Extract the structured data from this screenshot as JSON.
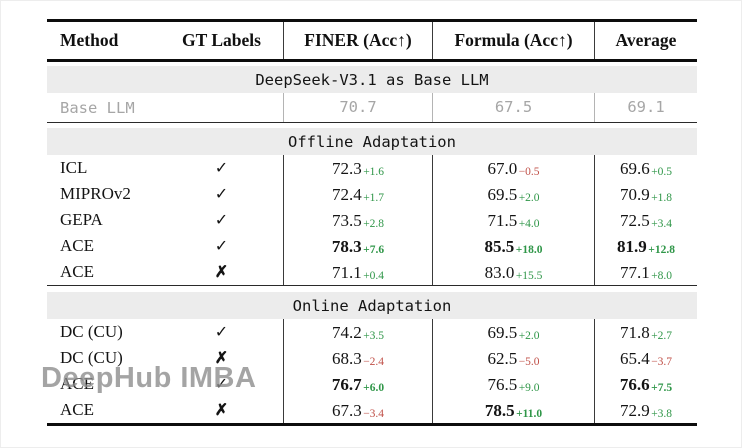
{
  "header": {
    "columns": [
      "Method",
      "GT Labels",
      "FINER (Acc↑)",
      "Formula (Acc↑)",
      "Average"
    ]
  },
  "base_section": {
    "title": "DeepSeek-V3.1 as Base LLM",
    "row": {
      "method": "Base LLM",
      "gt": "",
      "finer": "70.7",
      "formula": "67.5",
      "average": "69.1"
    }
  },
  "offline": {
    "title": "Offline Adaptation",
    "rows": [
      {
        "method": "ICL",
        "gt": "✓",
        "finer": {
          "v": "72.3",
          "d": "+1.6"
        },
        "formula": {
          "v": "67.0",
          "d": "−0.5"
        },
        "average": {
          "v": "69.6",
          "d": "+0.5"
        }
      },
      {
        "method": "MIPROv2",
        "gt": "✓",
        "finer": {
          "v": "72.4",
          "d": "+1.7"
        },
        "formula": {
          "v": "69.5",
          "d": "+2.0"
        },
        "average": {
          "v": "70.9",
          "d": "+1.8"
        }
      },
      {
        "method": "GEPA",
        "gt": "✓",
        "finer": {
          "v": "73.5",
          "d": "+2.8"
        },
        "formula": {
          "v": "71.5",
          "d": "+4.0"
        },
        "average": {
          "v": "72.5",
          "d": "+3.4"
        }
      },
      {
        "method": "ACE",
        "gt": "✓",
        "finer": {
          "v": "78.3",
          "d": "+7.6"
        },
        "formula": {
          "v": "85.5",
          "d": "+18.0"
        },
        "average": {
          "v": "81.9",
          "d": "+12.8"
        }
      },
      {
        "method": "ACE",
        "gt": "✗",
        "finer": {
          "v": "71.1",
          "d": "+0.4"
        },
        "formula": {
          "v": "83.0",
          "d": "+15.5"
        },
        "average": {
          "v": "77.1",
          "d": "+8.0"
        }
      }
    ]
  },
  "online": {
    "title": "Online Adaptation",
    "rows": [
      {
        "method": "DC (CU)",
        "gt": "✓",
        "finer": {
          "v": "74.2",
          "d": "+3.5"
        },
        "formula": {
          "v": "69.5",
          "d": "+2.0"
        },
        "average": {
          "v": "71.8",
          "d": "+2.7"
        }
      },
      {
        "method": "DC (CU)",
        "gt": "✗",
        "finer": {
          "v": "68.3",
          "d": "−2.4"
        },
        "formula": {
          "v": "62.5",
          "d": "−5.0"
        },
        "average": {
          "v": "65.4",
          "d": "−3.7"
        }
      },
      {
        "method": "ACE",
        "gt": "✓",
        "finer": {
          "v": "76.7",
          "d": "+6.0"
        },
        "formula": {
          "v": "76.5",
          "d": "+9.0"
        },
        "average": {
          "v": "76.6",
          "d": "+7.5"
        }
      },
      {
        "method": "ACE",
        "gt": "✗",
        "finer": {
          "v": "67.3",
          "d": "−3.4"
        },
        "formula": {
          "v": "78.5",
          "d": "+11.0"
        },
        "average": {
          "v": "72.9",
          "d": "+3.8"
        }
      }
    ]
  },
  "watermark": "DeepHub IMBA",
  "colors": {
    "positive_delta": "#2f9648",
    "negative_delta": "#c05048",
    "band_background": "#ececec",
    "muted_row_text": "#a6a6a6"
  }
}
